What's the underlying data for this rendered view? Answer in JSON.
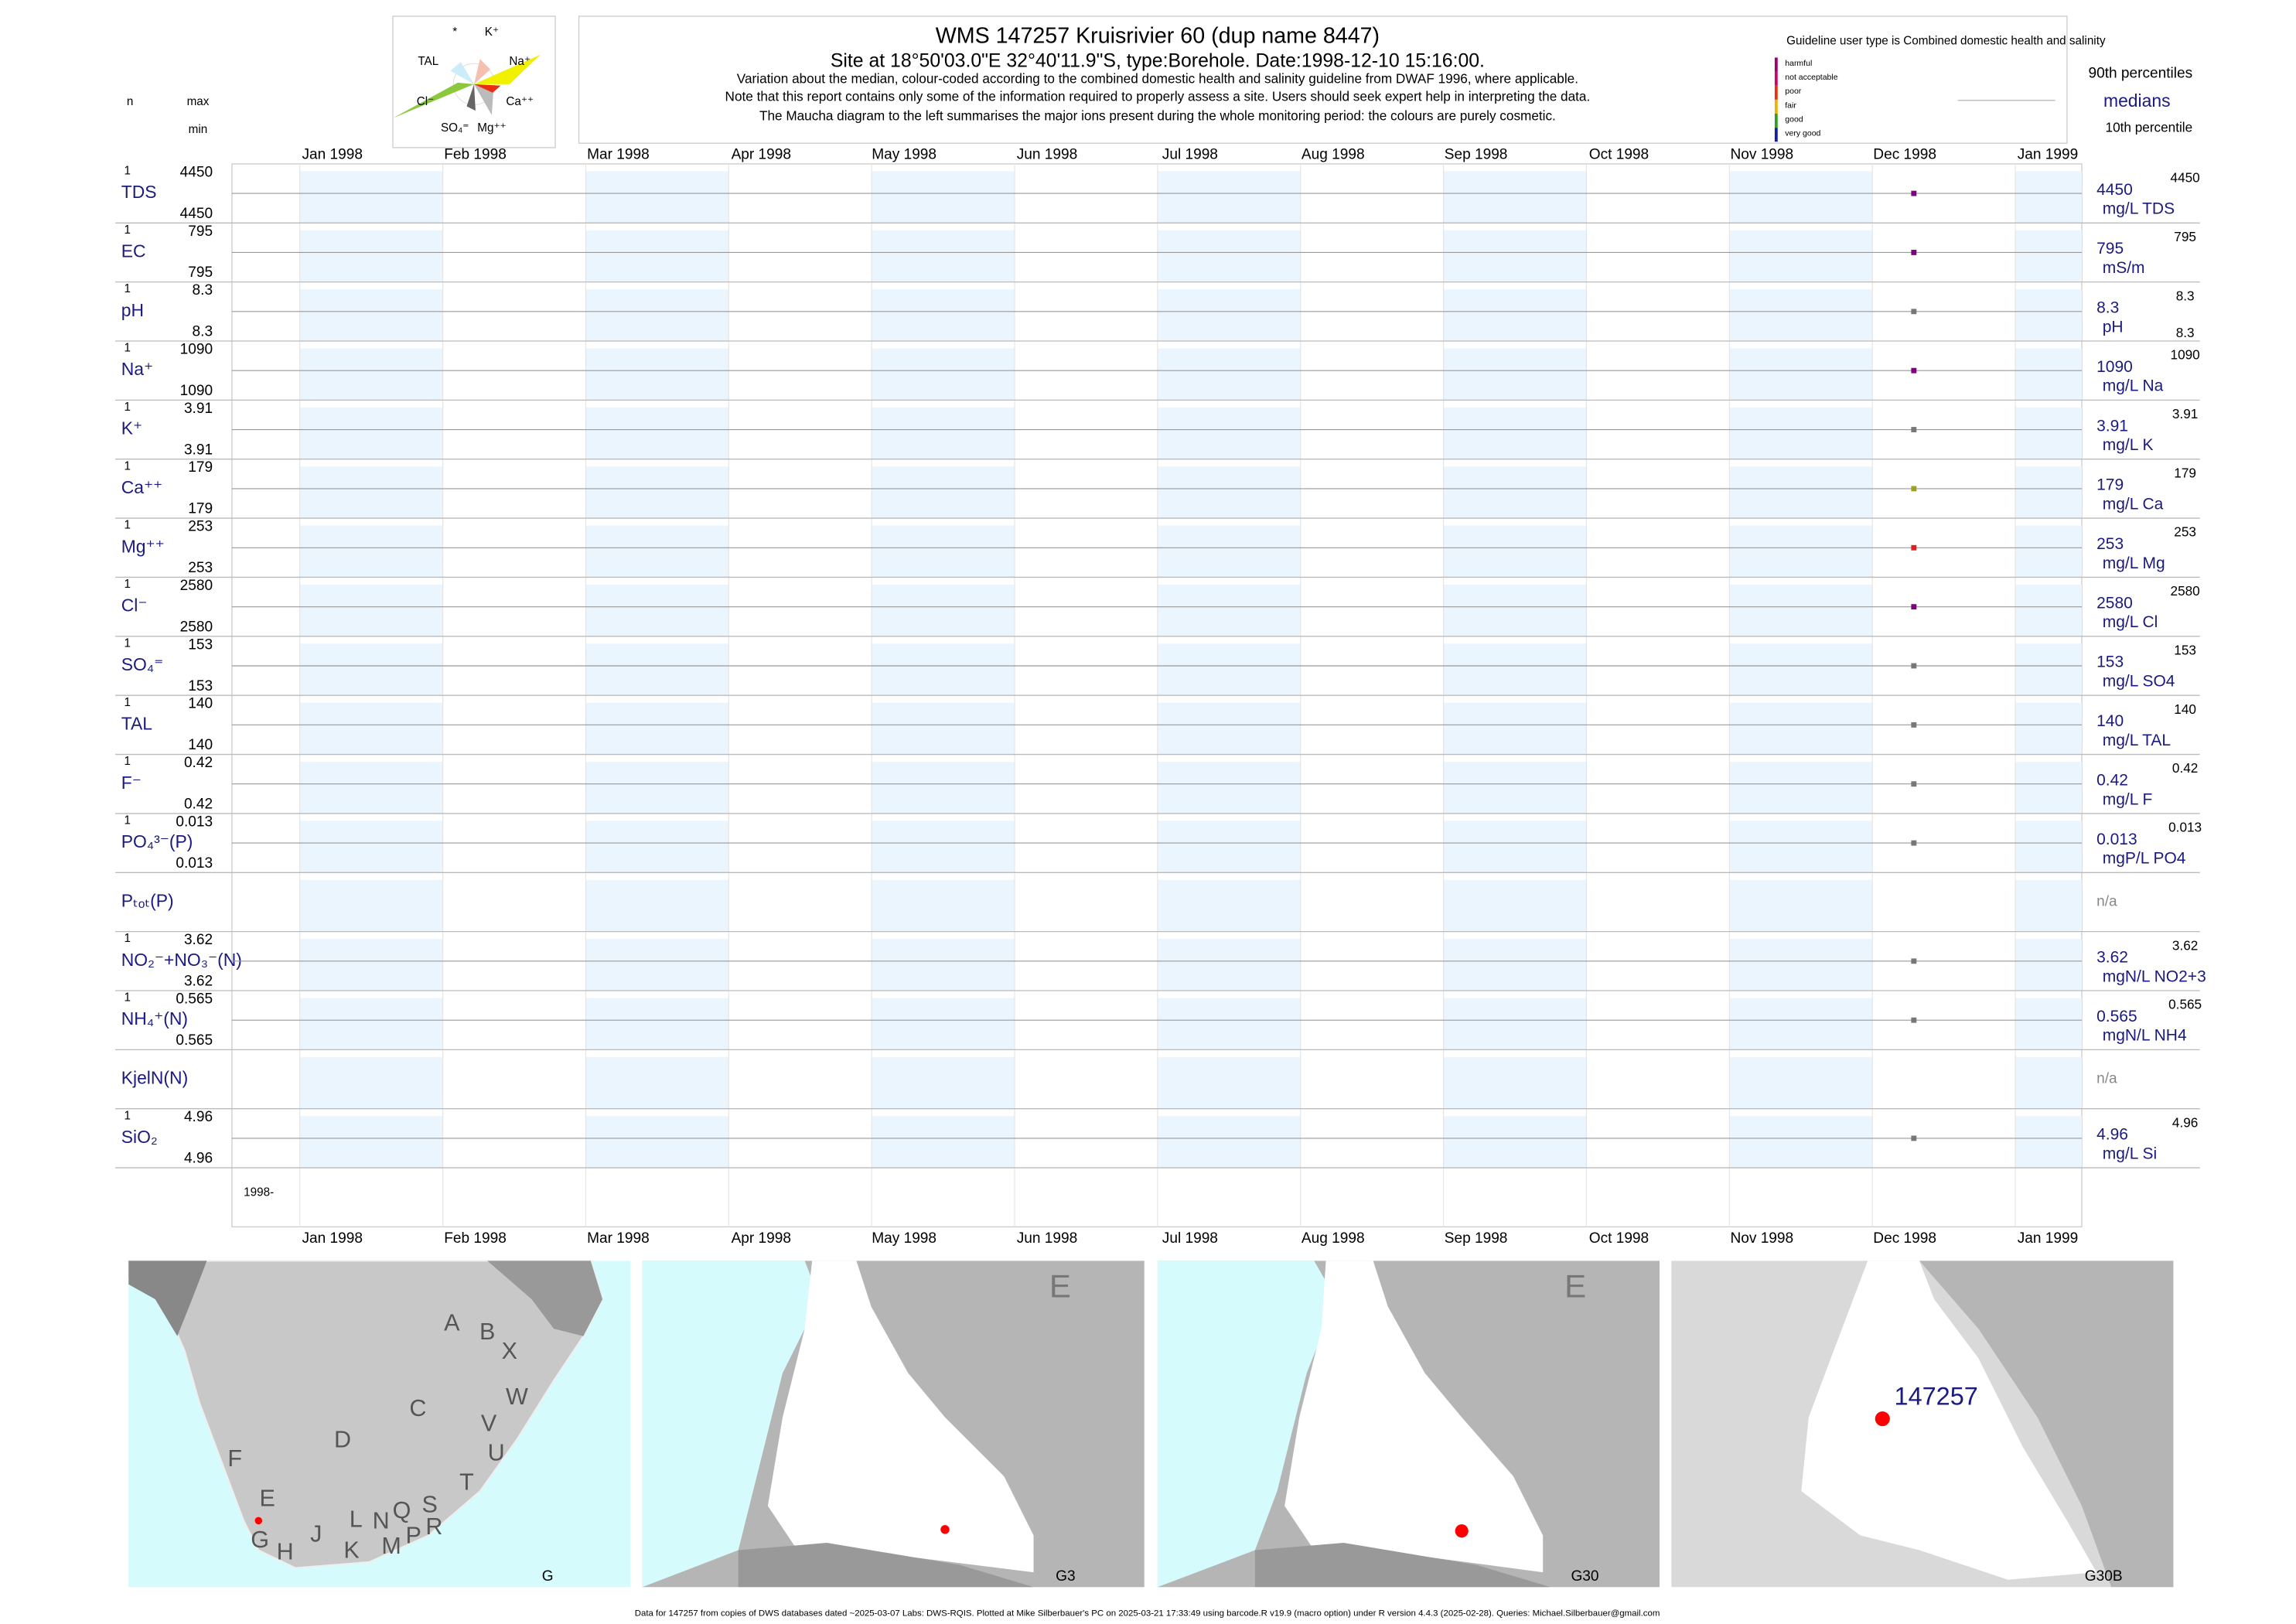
{
  "header": {
    "title": "WMS 147257  Kruisrivier 60 (dup name 8447)",
    "subtitle": "Site at 18°50'03.0\"E 32°40'11.9\"S, type:Borehole. Date:1998-12-10 15:16:00.",
    "notes": [
      "Variation about the median,  colour-coded according to the combined domestic health and salinity guideline from DWAF 1996, where applicable.",
      "Note that this report contains only some of the information required to properly assess a site. Users should seek expert help in interpreting the data.",
      "The Maucha diagram to the left summarises the major ions present during the whole monitoring period: the colours are purely cosmetic."
    ],
    "guideline": "Guideline user type is Combined domestic health and salinity",
    "legend": [
      {
        "label": "harmful",
        "color": "#9b0070"
      },
      {
        "label": "not acceptable",
        "color": "#d0006a"
      },
      {
        "label": "poor",
        "color": "#e83010"
      },
      {
        "label": "fair",
        "color": "#f0b000"
      },
      {
        "label": "good",
        "color": "#30a020"
      },
      {
        "label": "very good",
        "color": "#1020a0"
      }
    ],
    "p90_label": "90th percentiles",
    "median_label": "medians",
    "p10_label": "10th percentile",
    "n_label": "n",
    "max_label": "max",
    "min_label": "min"
  },
  "maucha": {
    "labels": [
      "*",
      "K⁺",
      "TAL",
      "Na⁺",
      "Cl⁻",
      "Ca⁺⁺",
      "SO₄⁼",
      "Mg⁺⁺"
    ]
  },
  "timeline": {
    "months": [
      "Jan 1998",
      "Feb 1998",
      "Mar 1998",
      "Apr 1998",
      "May 1998",
      "Jun 1998",
      "Jul 1998",
      "Aug 1998",
      "Sep 1998",
      "Oct 1998",
      "Nov 1998",
      "Dec 1998",
      "Jan 1999"
    ],
    "sample_date": "1998-12-10",
    "start_label": "1998-"
  },
  "rows": [
    {
      "label": "TDS",
      "n": 1,
      "max": 4450,
      "min": 4450,
      "median": 4450,
      "unit": "mg/L TDS",
      "p90": 4450,
      "color": "#800080"
    },
    {
      "label": "EC",
      "n": 1,
      "max": 795,
      "min": 795,
      "median": 795,
      "unit": "mS/m",
      "p90": 795,
      "color": "#800080"
    },
    {
      "label": "pH",
      "n": 1,
      "max": 8.3,
      "min": 8.3,
      "median": 8.3,
      "unit": "pH",
      "p90": 8.3,
      "p10": 8.3,
      "color": "#777777"
    },
    {
      "label": "Na⁺",
      "n": 1,
      "max": 1090,
      "min": 1090,
      "median": 1090,
      "unit": "mg/L Na",
      "p90": 1090,
      "color": "#800080"
    },
    {
      "label": "K⁺",
      "n": 1,
      "max": 3.91,
      "min": 3.91,
      "median": 3.91,
      "unit": "mg/L K",
      "p90": 3.91,
      "color": "#777777"
    },
    {
      "label": "Ca⁺⁺",
      "n": 1,
      "max": 179,
      "min": 179,
      "median": 179,
      "unit": "mg/L Ca",
      "p90": 179,
      "color": "#a0a020"
    },
    {
      "label": "Mg⁺⁺",
      "n": 1,
      "max": 253,
      "min": 253,
      "median": 253,
      "unit": "mg/L Mg",
      "p90": 253,
      "color": "#e02020"
    },
    {
      "label": "Cl⁻",
      "n": 1,
      "max": 2580,
      "min": 2580,
      "median": 2580,
      "unit": "mg/L Cl",
      "p90": 2580,
      "color": "#800080"
    },
    {
      "label": "SO₄⁼",
      "n": 1,
      "max": 153,
      "min": 153,
      "median": 153,
      "unit": "mg/L SO4",
      "p90": 153,
      "color": "#777777"
    },
    {
      "label": "TAL",
      "n": 1,
      "max": 140,
      "min": 140,
      "median": 140,
      "unit": "mg/L TAL",
      "p90": 140,
      "color": "#777777"
    },
    {
      "label": "F⁻",
      "n": 1,
      "max": 0.42,
      "min": 0.42,
      "median": 0.42,
      "unit": "mg/L F",
      "p90": 0.42,
      "color": "#777777"
    },
    {
      "label": "PO₄³⁻(P)",
      "n": 1,
      "max": 0.013,
      "min": 0.013,
      "median": 0.013,
      "unit": "mgP/L PO4",
      "p90": 0.013,
      "color": "#777777"
    },
    {
      "label": "Pₜₒₜ(P)",
      "status": "n/a"
    },
    {
      "label": "NO₂⁻+NO₃⁻(N)",
      "n": 1,
      "max": 3.62,
      "min": 3.62,
      "median": 3.62,
      "unit": "mgN/L NO2+3",
      "p90": 3.62,
      "color": "#777777"
    },
    {
      "label": "NH₄⁺(N)",
      "n": 1,
      "max": 0.565,
      "min": 0.565,
      "median": 0.565,
      "unit": "mgN/L NH4",
      "p90": 0.565,
      "color": "#777777"
    },
    {
      "label": "KjelN(N)",
      "status": "n/a"
    },
    {
      "label": "SiO₂",
      "n": 1,
      "max": 4.96,
      "min": 4.96,
      "median": 4.96,
      "unit": "mg/L Si",
      "p90": 4.96,
      "color": "#777777"
    }
  ],
  "maps": [
    {
      "label": "G",
      "regions": [
        "A",
        "B",
        "X",
        "W",
        "C",
        "V",
        "U",
        "D",
        "T",
        "F",
        "E",
        "G",
        "H",
        "J",
        "K",
        "L",
        "N",
        "Q",
        "S",
        "M",
        "P",
        "R"
      ]
    },
    {
      "label": "G3",
      "regions": [
        "E"
      ]
    },
    {
      "label": "G30",
      "regions": [
        "E"
      ]
    },
    {
      "label": "G30B",
      "site": "147257"
    }
  ],
  "footer": "Data for 147257 from copies of DWS databases dated ~2025-03-07 Labs: DWS-RQIS. Plotted at Mike Silberbauer's PC on 2025-03-21 17:33:49 using barcode.R v19.9 (macro option) under R version 4.4.3 (2025-02-28). Queries: Michael.Silberbauer@gmail.com"
}
